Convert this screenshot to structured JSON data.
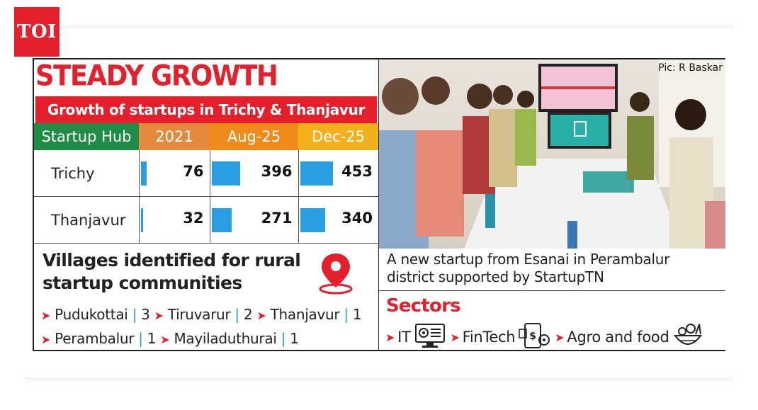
{
  "brand": {
    "logo_text": "TOI",
    "color": "#e4202c"
  },
  "infographic": {
    "headline": "STEADY GROWTH",
    "subhead": "Growth of startups in Trichy & Thanjavur",
    "bar_color": "#2a9ee2",
    "header_colors": {
      "hub": "#1e8c45",
      "y2021": "#e38a3c",
      "aug": "#f08a1a",
      "dec": "#f2b01c"
    }
  },
  "chart_data": {
    "type": "table",
    "title": "Growth of startups in Trichy & Thanjavur",
    "columns": [
      "Startup Hub",
      "2021",
      "Aug-25",
      "Dec-25"
    ],
    "rows": [
      {
        "hub": "Trichy",
        "values": [
          76,
          396,
          453
        ]
      },
      {
        "hub": "Thanjavur",
        "values": [
          32,
          271,
          340
        ]
      }
    ],
    "bar_max": 453
  },
  "villages": {
    "title_line1": "Villages identified for rural",
    "title_line2": "startup communities",
    "pin_icon": "location-pin-icon",
    "items": [
      {
        "name": "Pudukottai",
        "count": "3"
      },
      {
        "name": "Tiruvarur",
        "count": "2"
      },
      {
        "name": "Thanjavur",
        "count": "1"
      },
      {
        "name": "Perambalur",
        "count": "1"
      },
      {
        "name": "Mayiladuthurai",
        "count": "1"
      }
    ]
  },
  "photo": {
    "credit": "Pic: R Baskar",
    "caption_line1": "A new startup from Esanai in Perambalur",
    "caption_line2": "district supported by StartupTN"
  },
  "sectors": {
    "title": "Sectors",
    "items": [
      {
        "label": "IT",
        "icon": "computer-gears-icon"
      },
      {
        "label": "FinTech",
        "icon": "phone-money-icon"
      },
      {
        "label": "Agro and food",
        "icon": "food-basket-icon"
      }
    ]
  }
}
